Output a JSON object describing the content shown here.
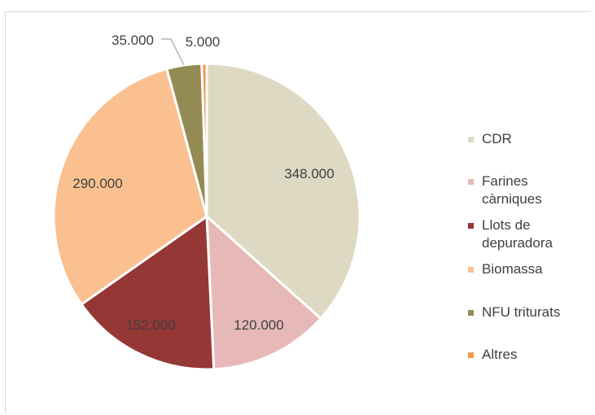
{
  "chart_data": {
    "type": "pie",
    "title": "",
    "legend_position": "right",
    "slices": [
      {
        "label": "CDR",
        "value": 348000,
        "display": "348.000",
        "color": "#ddd9c3"
      },
      {
        "label": "Farines càrniques",
        "value": 120000,
        "display": "120.000",
        "color": "#e6b9b8"
      },
      {
        "label": "Llots de depuradora",
        "value": 152000,
        "display": "152.000",
        "color": "#953735"
      },
      {
        "label": "Biomassa",
        "value": 290000,
        "display": "290.000",
        "color": "#fac090"
      },
      {
        "label": "NFU triturats",
        "value": 35000,
        "display": "35.000",
        "color": "#948a54"
      },
      {
        "label": "Altres",
        "value": 5000,
        "display": "5.000",
        "color": "#f79646"
      }
    ]
  }
}
